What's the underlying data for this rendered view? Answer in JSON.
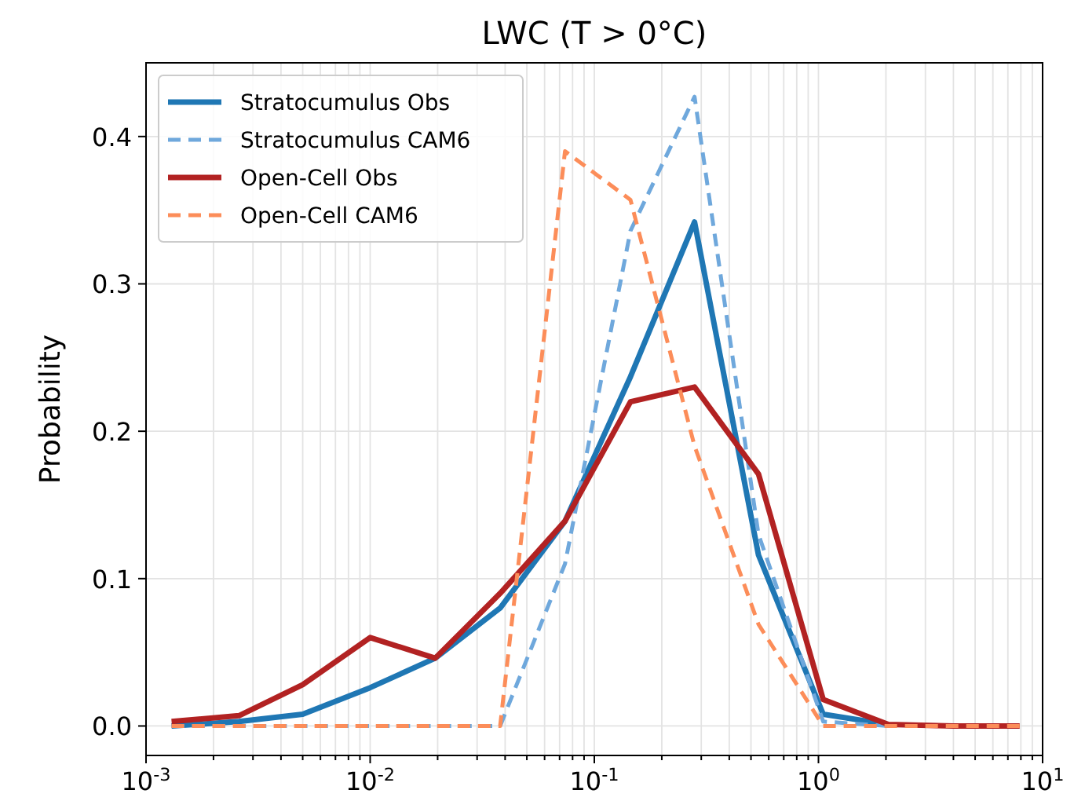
{
  "chart_data": {
    "type": "line",
    "title": "LWC (T > 0°C)",
    "ylabel": "Probability",
    "x": [
      0.0013,
      0.0026,
      0.005,
      0.01,
      0.0195,
      0.038,
      0.074,
      0.145,
      0.28,
      0.54,
      1.05,
      2.05,
      4,
      7.9
    ],
    "series": [
      {
        "name": "Stratocumulus Obs",
        "color": "#1f77b4",
        "line_style": "solid",
        "values": [
          0.0,
          0.003,
          0.008,
          0.026,
          0.046,
          0.08,
          0.139,
          0.237,
          0.342,
          0.116,
          0.008,
          0.001,
          null,
          null
        ]
      },
      {
        "name": "Stratocumulus CAM6",
        "color": "#6fa8dc",
        "line_style": "dashed",
        "values": [
          0,
          0,
          0,
          0,
          0,
          0,
          0.11,
          0.336,
          0.427,
          0.13,
          0.003,
          0,
          null,
          null
        ]
      },
      {
        "name": "Open-Cell Obs",
        "color": "#b22222",
        "line_style": "solid",
        "values": [
          0.003,
          0.007,
          0.028,
          0.06,
          0.046,
          0.09,
          0.139,
          0.22,
          0.23,
          0.171,
          0.018,
          0.001,
          0,
          0
        ]
      },
      {
        "name": "Open-Cell CAM6",
        "color": "#fc8d59",
        "line_style": "dashed",
        "values": [
          0,
          0,
          0,
          0,
          0,
          0,
          0.39,
          0.357,
          0.19,
          0.069,
          0,
          0,
          0,
          0
        ]
      }
    ],
    "log": "x",
    "xlim": [
      0.001,
      10
    ],
    "xticks": [
      {
        "value": 0.001,
        "label": "10$^{-3}$"
      },
      {
        "value": 0.002,
        "label": null
      },
      {
        "value": 0.003,
        "label": null
      },
      {
        "value": 0.004,
        "label": null
      },
      {
        "value": 0.005,
        "label": null
      },
      {
        "value": 0.006,
        "label": null
      },
      {
        "value": 0.007,
        "label": null
      },
      {
        "value": 0.008,
        "label": null
      },
      {
        "value": 0.009,
        "label": null
      },
      {
        "value": 0.01,
        "label": "10$^{-2}$"
      },
      {
        "value": 0.02,
        "label": null
      },
      {
        "value": 0.03,
        "label": null
      },
      {
        "value": 0.04,
        "label": null
      },
      {
        "value": 0.05,
        "label": null
      },
      {
        "value": 0.06,
        "label": null
      },
      {
        "value": 0.07,
        "label": null
      },
      {
        "value": 0.08,
        "label": null
      },
      {
        "value": 0.09,
        "label": null
      },
      {
        "value": 0.1,
        "label": "10$^{-1}$"
      },
      {
        "value": 0.2,
        "label": null
      },
      {
        "value": 0.3,
        "label": null
      },
      {
        "value": 0.4,
        "label": null
      },
      {
        "value": 0.5,
        "label": null
      },
      {
        "value": 0.6,
        "label": null
      },
      {
        "value": 0.7,
        "label": null
      },
      {
        "value": 0.8,
        "label": null
      },
      {
        "value": 0.9,
        "label": null
      },
      {
        "value": 1,
        "label": "10$^{0}$"
      },
      {
        "value": 2,
        "label": null
      },
      {
        "value": 3,
        "label": null
      },
      {
        "value": 4,
        "label": null
      },
      {
        "value": 5,
        "label": null
      },
      {
        "value": 6,
        "label": null
      },
      {
        "value": 7,
        "label": null
      },
      {
        "value": 8,
        "label": null
      },
      {
        "value": 9,
        "label": null
      },
      {
        "value": 10,
        "label": "10$^{1}$"
      }
    ],
    "ylim": [
      -0.02,
      0.45
    ],
    "yticks": [
      {
        "value": 0,
        "label": "0.0"
      },
      {
        "value": 0.1,
        "label": "0.1"
      },
      {
        "value": 0.2,
        "label": "0.2"
      },
      {
        "value": 0.3,
        "label": "0.3"
      },
      {
        "value": 0.4,
        "label": "0.4"
      }
    ],
    "grid": true,
    "legend": "top left"
  }
}
